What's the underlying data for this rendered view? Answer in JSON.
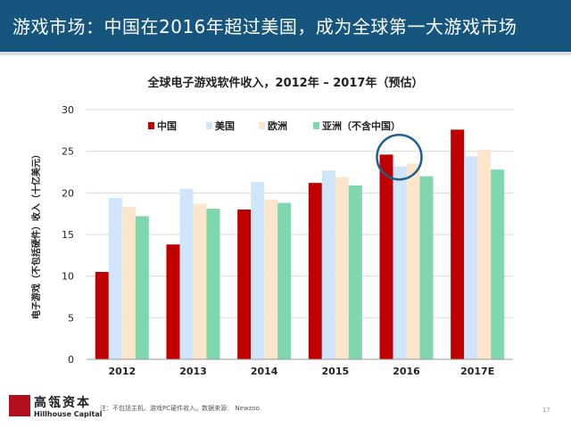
{
  "header": {
    "title": "游戏市场：中国在2016年超过美国，成为全球第一大游戏市场"
  },
  "chart_data": {
    "type": "bar",
    "title": "全球电子游戏软件收入，2012年 – 2017年（预估）",
    "ylabel": "电子游戏（不包括硬件）收入（十亿美元）",
    "xlabel": "",
    "categories": [
      "2012",
      "2013",
      "2014",
      "2015",
      "2016",
      "2017E"
    ],
    "ylim": [
      0,
      30
    ],
    "yticks": [
      0,
      5,
      10,
      15,
      20,
      25,
      30
    ],
    "series": [
      {
        "name": "中国",
        "color": "#c00000",
        "values": [
          10.5,
          13.8,
          18.0,
          21.2,
          24.6,
          27.6
        ]
      },
      {
        "name": "美国",
        "color": "#cfe6fa",
        "values": [
          19.4,
          20.5,
          21.3,
          22.7,
          23.2,
          24.4
        ]
      },
      {
        "name": "欧洲",
        "color": "#fbe6cb",
        "values": [
          18.3,
          18.7,
          19.2,
          21.9,
          23.5,
          25.2
        ]
      },
      {
        "name": "亚洲（不含中国）",
        "color": "#7fd7ad",
        "values": [
          17.2,
          18.1,
          18.8,
          20.9,
          22.0,
          22.8
        ]
      }
    ],
    "grid": true,
    "legend": "top",
    "annotation": "circle highlighting 2016"
  },
  "footer": {
    "brand_cn": "高瓴资本",
    "brand_en": "Hillhouse Capital",
    "note": "注：不包括主机、游戏PC硬件收入。数据来源： Newzoo.",
    "page": "17"
  }
}
